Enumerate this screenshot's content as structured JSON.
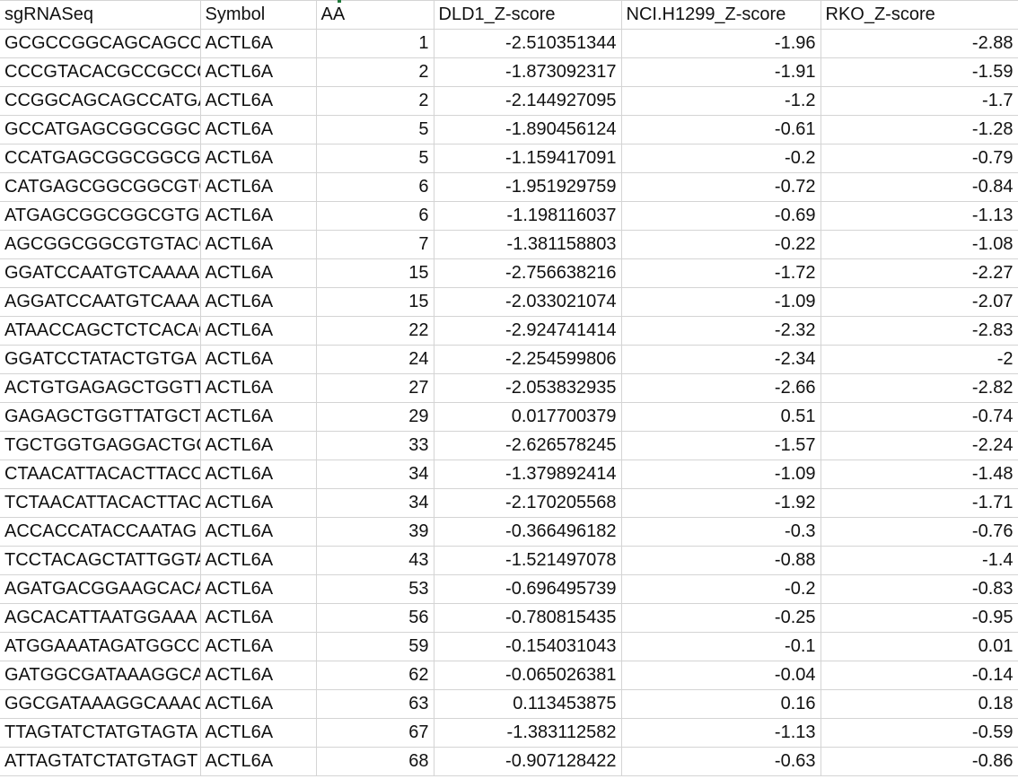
{
  "sheet": {
    "headers": [
      "sgRNASeq",
      "Symbol",
      "AA",
      "DLD1_Z-score",
      "NCI.H1299_Z-score",
      "RKO_Z-score"
    ],
    "rows": [
      [
        "GCGCCGGCAGCAGCCA",
        "ACTL6A",
        "1",
        "-2.510351344",
        "-1.96",
        "-2.88"
      ],
      [
        "CCCGTACACGCCGCCG",
        "ACTL6A",
        "2",
        "-1.873092317",
        "-1.91",
        "-1.59"
      ],
      [
        "CCGGCAGCAGCCATGA",
        "ACTL6A",
        "2",
        "-2.144927095",
        "-1.2",
        "-1.7"
      ],
      [
        "GCCATGAGCGGCGGCC",
        "ACTL6A",
        "5",
        "-1.890456124",
        "-0.61",
        "-1.28"
      ],
      [
        "CCATGAGCGGCGGCGT",
        "ACTL6A",
        "5",
        "-1.159417091",
        "-0.2",
        "-0.79"
      ],
      [
        "CATGAGCGGCGGCGTC",
        "ACTL6A",
        "6",
        "-1.951929759",
        "-0.72",
        "-0.84"
      ],
      [
        "ATGAGCGGCGGCGTGT",
        "ACTL6A",
        "6",
        "-1.198116037",
        "-0.69",
        "-1.13"
      ],
      [
        "AGCGGCGGCGTGTACC",
        "ACTL6A",
        "7",
        "-1.381158803",
        "-0.22",
        "-1.08"
      ],
      [
        "GGATCCAATGTCAAAA",
        "ACTL6A",
        "15",
        "-2.756638216",
        "-1.72",
        "-2.27"
      ],
      [
        "AGGATCCAATGTCAAA",
        "ACTL6A",
        "15",
        "-2.033021074",
        "-1.09",
        "-2.07"
      ],
      [
        "ATAACCAGCTCTCACAC",
        "ACTL6A",
        "22",
        "-2.924741414",
        "-2.32",
        "-2.83"
      ],
      [
        "GGATCCTATACTGTGA",
        "ACTL6A",
        "24",
        "-2.254599806",
        "-2.34",
        "-2"
      ],
      [
        "ACTGTGAGAGCTGGTT",
        "ACTL6A",
        "27",
        "-2.053832935",
        "-2.66",
        "-2.82"
      ],
      [
        "GAGAGCTGGTTATGCT",
        "ACTL6A",
        "29",
        "0.017700379",
        "0.51",
        "-0.74"
      ],
      [
        "TGCTGGTGAGGACTGC",
        "ACTL6A",
        "33",
        "-2.626578245",
        "-1.57",
        "-2.24"
      ],
      [
        "CTAACATTACACTTACC",
        "ACTL6A",
        "34",
        "-1.379892414",
        "-1.09",
        "-1.48"
      ],
      [
        "TCTAACATTACACTTAC",
        "ACTL6A",
        "34",
        "-2.170205568",
        "-1.92",
        "-1.71"
      ],
      [
        "ACCACCATACCAATAG",
        "ACTL6A",
        "39",
        "-0.366496182",
        "-0.3",
        "-0.76"
      ],
      [
        "TCCTACAGCTATTGGTA",
        "ACTL6A",
        "43",
        "-1.521497078",
        "-0.88",
        "-1.4"
      ],
      [
        "AGATGACGGAAGCACA",
        "ACTL6A",
        "53",
        "-0.696495739",
        "-0.2",
        "-0.83"
      ],
      [
        "AGCACATTAATGGAAA",
        "ACTL6A",
        "56",
        "-0.780815435",
        "-0.25",
        "-0.95"
      ],
      [
        "ATGGAAATAGATGGCC",
        "ACTL6A",
        "59",
        "-0.154031043",
        "-0.1",
        "0.01"
      ],
      [
        "GATGGCGATAAAGGCA",
        "ACTL6A",
        "62",
        "-0.065026381",
        "-0.04",
        "-0.14"
      ],
      [
        "GGCGATAAAGGCAAAC",
        "ACTL6A",
        "63",
        "0.113453875",
        "0.16",
        "0.18"
      ],
      [
        "TTAGTATCTATGTAGTA",
        "ACTL6A",
        "67",
        "-1.383112582",
        "-1.13",
        "-0.59"
      ],
      [
        "ATTAGTATCTATGTAGT",
        "ACTL6A",
        "68",
        "-0.907128422",
        "-0.63",
        "-0.86"
      ]
    ]
  }
}
